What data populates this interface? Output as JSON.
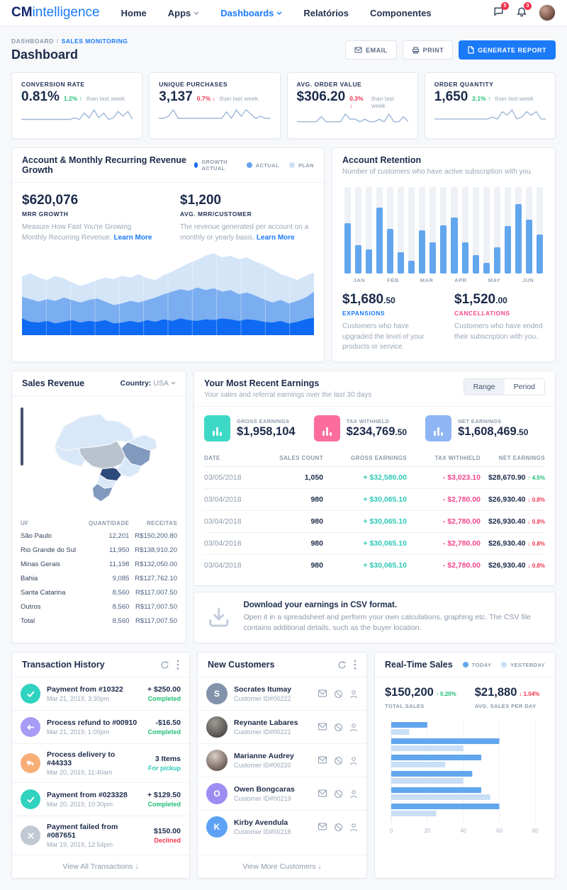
{
  "colors": {
    "accent": "#1a7af8",
    "green": "#1fbf75",
    "red": "#f0334d",
    "teal": "#2fc9b8",
    "pink": "#f5458c"
  },
  "nav": {
    "logo_bold": "CM",
    "logo_light": "intelligence",
    "items": [
      {
        "label": "Home"
      },
      {
        "label": "Apps"
      },
      {
        "label": "Dashboards"
      },
      {
        "label": "Relatórios"
      },
      {
        "label": "Componentes"
      }
    ],
    "chat_badge": "5",
    "bell_badge": "3"
  },
  "header": {
    "breadcrumb_root": "DASHBOARD",
    "breadcrumb_current": "SALES MONITORING",
    "title": "Dashboard",
    "email_btn": "EMAIL",
    "print_btn": "PRINT",
    "report_btn": "GENERATE REPORT"
  },
  "kpis": [
    {
      "label": "CONVERSION RATE",
      "value": "0.81%",
      "delta": "1.2% ↑",
      "suffix": "than last week",
      "spark": [
        2,
        2,
        2,
        2,
        2,
        2,
        2,
        2,
        2,
        2,
        2,
        3,
        2,
        6,
        3,
        8,
        3,
        6,
        2,
        3,
        7,
        4,
        7,
        2
      ]
    },
    {
      "label": "UNIQUE PURCHASES",
      "value": "3,137",
      "delta": "0.7% ↓",
      "suffix": "than last week",
      "spark": [
        2,
        2,
        3,
        6,
        2,
        2,
        2,
        2,
        2,
        2,
        2,
        2,
        2,
        2,
        5,
        2,
        6,
        3,
        6,
        4,
        2,
        3,
        2,
        2
      ]
    },
    {
      "label": "AVG. ORDER VALUE",
      "value": "$306.20",
      "delta": "0.3% ↓",
      "suffix": "than last week",
      "spark": [
        2,
        2,
        2,
        2,
        2,
        4,
        2,
        2,
        2,
        2,
        5,
        3,
        3,
        2,
        3,
        2,
        2,
        3,
        2,
        5,
        2,
        2,
        4,
        2
      ]
    },
    {
      "label": "ORDER QUANTITY",
      "value": "1,650",
      "delta": "2.1% ↑",
      "suffix": "than last week",
      "spark": [
        2,
        2,
        2,
        2,
        2,
        2,
        2,
        2,
        2,
        2,
        2,
        2,
        3,
        2,
        6,
        4,
        7,
        2,
        3,
        6,
        4,
        6,
        2,
        2
      ]
    }
  ],
  "mrr_panel": {
    "title": "Account & Monthly Recurring Revenue Growth",
    "legend": [
      {
        "label": "GROWTH ACTUAL",
        "color": "#1a6ef0"
      },
      {
        "label": "ACTUAL",
        "color": "#67a4f0"
      },
      {
        "label": "PLAN",
        "color": "#cfe2f8"
      }
    ],
    "stats": [
      {
        "value": "$620,076",
        "label": "MRR GROWTH",
        "desc": "Measure How Fast You're Growing Monthly Recurring Revenue.",
        "link": "Learn More"
      },
      {
        "value": "$1,200",
        "label": "AVG. MRR/CUSTOMER",
        "desc": "The revenue generated per account on a monthly or yearly basis.",
        "link": "Learn More"
      }
    ],
    "chart": {
      "type": "area",
      "series": [
        {
          "name": "PLAN",
          "color": "#d4e5f8",
          "opacity": 1,
          "values": [
            70,
            74,
            69,
            66,
            71,
            68,
            63,
            59,
            62,
            66,
            69,
            67,
            71,
            69,
            73,
            68,
            66,
            72,
            76,
            81,
            86,
            90,
            95,
            98,
            93,
            95,
            91,
            93,
            88,
            84,
            79,
            73,
            70,
            66,
            71,
            75
          ]
        },
        {
          "name": "ACTUAL",
          "color": "#6aa5ef",
          "opacity": 0.85,
          "values": [
            46,
            43,
            40,
            43,
            41,
            45,
            42,
            39,
            42,
            44,
            40,
            36,
            38,
            41,
            39,
            42,
            45,
            49,
            52,
            55,
            53,
            57,
            54,
            56,
            52,
            54,
            49,
            51,
            47,
            43,
            39,
            42,
            38,
            41,
            45,
            52
          ]
        },
        {
          "name": "GROWTH ACTUAL",
          "color": "#0e6af2",
          "opacity": 1,
          "values": [
            20,
            16,
            15,
            17,
            14,
            16,
            18,
            15,
            17,
            16,
            18,
            14,
            15,
            17,
            15,
            18,
            16,
            19,
            17,
            20,
            18,
            17,
            19,
            18,
            20,
            19,
            17,
            19,
            18,
            16,
            15,
            17,
            14,
            16,
            19,
            21
          ]
        }
      ]
    }
  },
  "retention_panel": {
    "title": "Account Retention",
    "subtitle": "Number of customers who have active subscription with you.",
    "chart": {
      "type": "bar",
      "values": [
        58,
        33,
        28,
        76,
        52,
        25,
        15,
        50,
        36,
        56,
        65,
        36,
        21,
        12,
        30,
        55,
        80,
        62,
        45
      ],
      "ylim": [
        0,
        100
      ],
      "months": [
        "JAN",
        "FEB",
        "MAR",
        "APR",
        "MAY",
        "JUN"
      ]
    },
    "expansions": {
      "value": "$1,680",
      "cents": ".50",
      "label": "EXPANSIONS",
      "desc": "Customers who have upgraded the level of your products or service."
    },
    "cancellations": {
      "value": "$1,520",
      "cents": ".00",
      "label": "CANCELLATIONS",
      "desc": "Customers who have ended their subscription with you."
    }
  },
  "sales_panel": {
    "title": "Sales Revenue",
    "country_label": "Country:",
    "country_value": "USA",
    "columns": [
      "UF",
      "QUANTIDADE",
      "RECEITAS"
    ],
    "rows": [
      {
        "uf": "São Paulo",
        "qty": "12,201",
        "rev": "R$150,200.80"
      },
      {
        "uf": "Rio Grande do Sul",
        "qty": "11,950",
        "rev": "R$138,910.20"
      },
      {
        "uf": "Minas Gerais",
        "qty": "11,198",
        "rev": "R$132,050.00"
      },
      {
        "uf": "Bahia",
        "qty": "9,085",
        "rev": "R$127,762.10"
      },
      {
        "uf": "Santa Catarina",
        "qty": "8,560",
        "rev": "R$117,007.50"
      },
      {
        "uf": "Outros",
        "qty": "8,560",
        "rev": "R$117,007.50"
      },
      {
        "uf": "Total",
        "qty": "8,560",
        "rev": "R$117,007.50"
      }
    ]
  },
  "earnings_panel": {
    "title": "Your Most Recent Earnings",
    "subtitle": "Your sales and referral earnings over the last 30 days",
    "toggle": {
      "range": "Range",
      "period": "Period"
    },
    "tiles": [
      {
        "label": "GROSS EARNINGS",
        "value": "$1,958,104",
        "cents": ""
      },
      {
        "label": "TAX WITHHELD",
        "value": "$234,769",
        "cents": ".50"
      },
      {
        "label": "NET EARNINGS",
        "value": "$1,608,469",
        "cents": ".50"
      }
    ],
    "columns": [
      "DATE",
      "SALES COUNT",
      "GROSS EARNINGS",
      "TAX WITHHELD",
      "NET EARNINGS"
    ],
    "rows": [
      {
        "date": "03/05/2018",
        "count": "1,050",
        "gross": "+ $32,580.00",
        "tax": "- $3,023.10",
        "net": "$28,670.90",
        "pct": "↑ 4.5%"
      },
      {
        "date": "03/04/2018",
        "count": "980",
        "gross": "+ $30,065.10",
        "tax": "- $2,780.00",
        "net": "$26,930.40",
        "pct": "↓ 0.8%"
      },
      {
        "date": "03/04/2018",
        "count": "980",
        "gross": "+ $30,065.10",
        "tax": "- $2,780.00",
        "net": "$26,930.40",
        "pct": "↓ 0.8%"
      },
      {
        "date": "03/04/2018",
        "count": "980",
        "gross": "+ $30,065.10",
        "tax": "- $2,780.00",
        "net": "$26,930.40",
        "pct": "↓ 0.8%"
      },
      {
        "date": "03/04/2018",
        "count": "980",
        "gross": "+ $30,065.10",
        "tax": "- $2,780.00",
        "net": "$26,930.40",
        "pct": "↓ 0.8%"
      }
    ]
  },
  "csv_panel": {
    "title": "Download your earnings in CSV format.",
    "desc": "Open it in a spreadsheet and perform your own calculations, graphing etc. The CSV file contains additional details, such as the buyer location."
  },
  "transactions_panel": {
    "title": "Transaction History",
    "rows": [
      {
        "title": "Payment from #10322",
        "time": "Mar 21, 2019, 3:30pm",
        "amount": "+ $250.00",
        "status": "Completed"
      },
      {
        "title": "Process refund to #00910",
        "time": "Mar 21, 2019, 1:00pm",
        "amount": "-$16.50",
        "status": "Completed"
      },
      {
        "title": "Process delivery to #44333",
        "time": "Mar 20, 2019, 11:40am",
        "amount": "3 Items",
        "status": "For pickup"
      },
      {
        "title": "Payment from #023328",
        "time": "Mar 20, 2019, 10:30pm",
        "amount": "+ $129.50",
        "status": "Completed"
      },
      {
        "title": "Payment failed from #087651",
        "time": "Mar 19, 2019, 12:54pm",
        "amount": "$150.00",
        "status": "Declined"
      }
    ],
    "footer": "View All Transactions ↓"
  },
  "customers_panel": {
    "title": "New Customers",
    "rows": [
      {
        "initial": "S",
        "name": "Socrates Itumay",
        "id": "Customer ID#00222"
      },
      {
        "initial": "",
        "name": "Reynante Labares",
        "id": "Customer ID#00221"
      },
      {
        "initial": "",
        "name": "Marianne Audrey",
        "id": "Customer ID#00220"
      },
      {
        "initial": "O",
        "name": "Owen Bongcaras",
        "id": "Customer ID#00219"
      },
      {
        "initial": "K",
        "name": "Kirby Avendula",
        "id": "Customer ID#00218"
      }
    ],
    "footer": "View More Customers ↓"
  },
  "realtime_panel": {
    "title": "Real-Time Sales",
    "legend": [
      {
        "label": "TODAY",
        "color": "#62a6ee"
      },
      {
        "label": "YESTERDAY",
        "color": "#c9def7"
      }
    ],
    "total": {
      "value": "$150,200",
      "pct": "↑ 0.20%",
      "label": "TOTAL SALES"
    },
    "avg": {
      "value": "$21,880",
      "pct": "↓ 1.04%",
      "label": "AVG. SALES PER DAY"
    },
    "chart": {
      "type": "bar",
      "orientation": "horizontal",
      "today": [
        20,
        60,
        50,
        45,
        50,
        60
      ],
      "yesterday": [
        10,
        40,
        30,
        40,
        55,
        25
      ],
      "ticks": [
        0,
        20,
        40,
        60,
        80
      ],
      "xlim": [
        0,
        85
      ]
    }
  }
}
